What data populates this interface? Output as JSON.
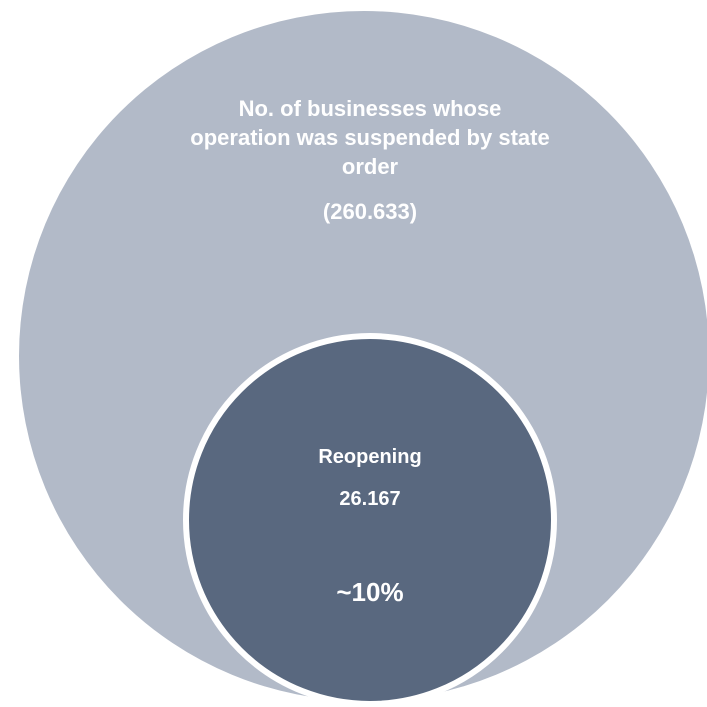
{
  "outer": {
    "label": "No. of businesses whose operation was suspended by state order",
    "value": "(260.633)"
  },
  "inner": {
    "title": "Reopening",
    "value": "26.167",
    "percent": "~10%"
  },
  "colors": {
    "outer_fill": "#b2bac8",
    "inner_fill": "#59687f",
    "text": "#ffffff"
  }
}
